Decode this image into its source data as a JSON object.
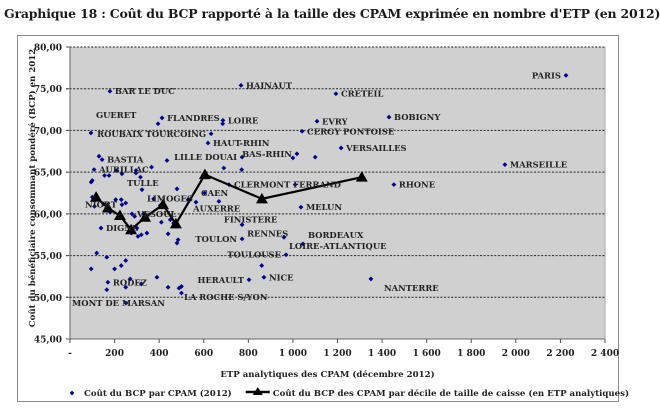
{
  "title": "Graphique 18 : Coût du BCP rapporté à la taille des CPAM exprimée en nombre d'ETP (en 2012)",
  "chart_data": {
    "type": "scatter",
    "title": "Graphique 18 : Coût du BCP rapporté à la taille des CPAM exprimée en nombre d'ETP (en 2012)",
    "xlabel": "ETP analytiques des CPAM (décembre 2012)",
    "ylabel": "Coût du bénéficiaire consommant pondéré (BCP) en 2012",
    "xlim": [
      0,
      2400
    ],
    "ylim": [
      45,
      80
    ],
    "x_ticks": [
      0,
      200,
      400,
      600,
      800,
      1000,
      1200,
      1400,
      1600,
      1800,
      2000,
      2200,
      2400
    ],
    "x_tick_labels": [
      "-",
      "200",
      "400",
      "600",
      "800",
      "1 000",
      "1 200",
      "1 400",
      "1 600",
      "1 800",
      "2 000",
      "2 200",
      "2 400"
    ],
    "y_ticks": [
      45,
      50,
      55,
      60,
      65,
      70,
      75,
      80
    ],
    "y_tick_labels": [
      "45,00",
      "50,00",
      "55,00",
      "60,00",
      "65,00",
      "70,00",
      "75,00",
      "80,00"
    ],
    "grid": "horizontal dotted",
    "legend_position": "bottom",
    "plot_background": "#d0d0d0",
    "series": [
      {
        "name": "Coût du BCP par CPAM (2012)",
        "kind": "scatter",
        "color": "#00008b",
        "labeled_points": [
          {
            "label": "PARIS",
            "x": 2225,
            "y": 76.6,
            "label_side": "left"
          },
          {
            "label": "MARSEILLE",
            "x": 1951,
            "y": 65.9
          },
          {
            "label": "CRETEIL",
            "x": 1193,
            "y": 74.4
          },
          {
            "label": "BOBIGNY",
            "x": 1431,
            "y": 71.6
          },
          {
            "label": "EVRY",
            "x": 1108,
            "y": 71.1
          },
          {
            "label": "CERGY PONTOISE",
            "x": 1041,
            "y": 69.9
          },
          {
            "label": "VERSAILLES",
            "x": 1216,
            "y": 67.9
          },
          {
            "label": "BAS-RHIN",
            "x": 1018,
            "y": 67.2
          },
          {
            "label": "RHONE",
            "x": 1453,
            "y": 63.5
          },
          {
            "label": "MELUN",
            "x": 1036,
            "y": 60.8
          },
          {
            "label": "HAINAUT",
            "x": 767,
            "y": 75.4
          },
          {
            "label": "LOIRE",
            "x": 686,
            "y": 71.2
          },
          {
            "label": "FLANDRES",
            "x": 413,
            "y": 71.5
          },
          {
            "label": "ROUBAIX TOURCOING",
            "x": 633,
            "y": 69.6
          },
          {
            "label": "HAUT-RHIN",
            "x": 619,
            "y": 68.5
          },
          {
            "label": "LILLE DOUAI",
            "x": 772,
            "y": 66.8
          },
          {
            "label": "BAR LE DUC",
            "x": 179,
            "y": 74.7
          },
          {
            "label": "GUERET",
            "x": 94,
            "y": 69.7
          },
          {
            "label": "BASTIA",
            "x": 144,
            "y": 66.5
          },
          {
            "label": "AURILLAC",
            "x": 108,
            "y": 65.3
          },
          {
            "label": "TULLE",
            "x": 233,
            "y": 64.8
          },
          {
            "label": "LIMOGES",
            "x": 323,
            "y": 62.9
          },
          {
            "label": "CLERMONT FERRAND",
            "x": 713,
            "y": 63.5
          },
          {
            "label": "AUXERRE",
            "x": 530,
            "y": 61.7
          },
          {
            "label": "CAEN",
            "x": 565,
            "y": 61.4
          },
          {
            "label": "FINISTERE",
            "x": 668,
            "y": 61.5
          },
          {
            "label": "NIORT",
            "x": 233,
            "y": 61.1
          },
          {
            "label": "VESOUL",
            "x": 278,
            "y": 60.0
          },
          {
            "label": "DIGNE",
            "x": 139,
            "y": 58.3
          },
          {
            "label": "RENNES",
            "x": 772,
            "y": 58.7
          },
          {
            "label": "TOULON",
            "x": 772,
            "y": 57.0
          },
          {
            "label": "LOIRE-ATLANTIQUE",
            "x": 960,
            "y": 57.2
          },
          {
            "label": "BORDEAUX",
            "x": 1045,
            "y": 56.4
          },
          {
            "label": "TOULOUSE",
            "x": 969,
            "y": 55.1
          },
          {
            "label": "HERAULT",
            "x": 803,
            "y": 52.1,
            "label_side": "left"
          },
          {
            "label": "NICE",
            "x": 870,
            "y": 52.4
          },
          {
            "label": "NANTERRE",
            "x": 1350,
            "y": 52.2,
            "label_side": "below"
          },
          {
            "label": "RODEZ",
            "x": 170,
            "y": 51.8
          },
          {
            "label": "LA ROCHE S/YON",
            "x": 489,
            "y": 51.1
          },
          {
            "label": "MONT DE MARSAN",
            "x": 251,
            "y": 49.3
          }
        ],
        "unlabeled_points": [
          {
            "x": 130,
            "y": 66.9
          },
          {
            "x": 100,
            "y": 64.0
          },
          {
            "x": 95,
            "y": 63.8
          },
          {
            "x": 155,
            "y": 64.6
          },
          {
            "x": 175,
            "y": 64.6
          },
          {
            "x": 210,
            "y": 65.2
          },
          {
            "x": 296,
            "y": 65.2
          },
          {
            "x": 316,
            "y": 64.4
          },
          {
            "x": 296,
            "y": 64.9
          },
          {
            "x": 366,
            "y": 65.6
          },
          {
            "x": 435,
            "y": 66.4
          },
          {
            "x": 480,
            "y": 63.0
          },
          {
            "x": 395,
            "y": 70.8
          },
          {
            "x": 685,
            "y": 70.8
          },
          {
            "x": 690,
            "y": 65.5
          },
          {
            "x": 770,
            "y": 65.3
          },
          {
            "x": 610,
            "y": 64.4
          },
          {
            "x": 1010,
            "y": 63.5
          },
          {
            "x": 1000,
            "y": 66.7
          },
          {
            "x": 1100,
            "y": 66.8
          },
          {
            "x": 100,
            "y": 62.0
          },
          {
            "x": 110,
            "y": 60.9
          },
          {
            "x": 150,
            "y": 61.2
          },
          {
            "x": 205,
            "y": 61.7
          },
          {
            "x": 230,
            "y": 61.7
          },
          {
            "x": 250,
            "y": 61.3
          },
          {
            "x": 180,
            "y": 60.2
          },
          {
            "x": 225,
            "y": 59.9
          },
          {
            "x": 290,
            "y": 59.7
          },
          {
            "x": 330,
            "y": 60.0
          },
          {
            "x": 300,
            "y": 58.3
          },
          {
            "x": 275,
            "y": 57.7
          },
          {
            "x": 320,
            "y": 57.5
          },
          {
            "x": 305,
            "y": 57.3
          },
          {
            "x": 345,
            "y": 57.7
          },
          {
            "x": 410,
            "y": 59.0
          },
          {
            "x": 450,
            "y": 59.3
          },
          {
            "x": 480,
            "y": 56.5
          },
          {
            "x": 440,
            "y": 57.6
          },
          {
            "x": 465,
            "y": 58.9
          },
          {
            "x": 485,
            "y": 56.9
          },
          {
            "x": 405,
            "y": 61.0
          },
          {
            "x": 375,
            "y": 61.8
          },
          {
            "x": 605,
            "y": 62.5
          },
          {
            "x": 120,
            "y": 55.3
          },
          {
            "x": 165,
            "y": 54.8
          },
          {
            "x": 230,
            "y": 53.8
          },
          {
            "x": 250,
            "y": 54.4
          },
          {
            "x": 95,
            "y": 53.4
          },
          {
            "x": 200,
            "y": 53.4
          },
          {
            "x": 270,
            "y": 52.2
          },
          {
            "x": 320,
            "y": 51.6
          },
          {
            "x": 390,
            "y": 52.4
          },
          {
            "x": 440,
            "y": 51.2
          },
          {
            "x": 500,
            "y": 51.3
          },
          {
            "x": 165,
            "y": 50.9
          },
          {
            "x": 250,
            "y": 51.2
          },
          {
            "x": 500,
            "y": 50.5
          },
          {
            "x": 860,
            "y": 53.8
          }
        ]
      },
      {
        "name": "Coût du BCP des CPAM par décile de taille de caisse (en ETP analytiques)",
        "kind": "line",
        "marker": "triangle",
        "color": "#000000",
        "x": [
          117,
          170,
          224,
          274,
          337,
          417,
          475,
          605,
          861,
          1309
        ],
        "y": [
          62.0,
          60.7,
          59.8,
          58.1,
          59.6,
          61.1,
          58.8,
          64.7,
          61.8,
          64.4
        ]
      }
    ]
  }
}
